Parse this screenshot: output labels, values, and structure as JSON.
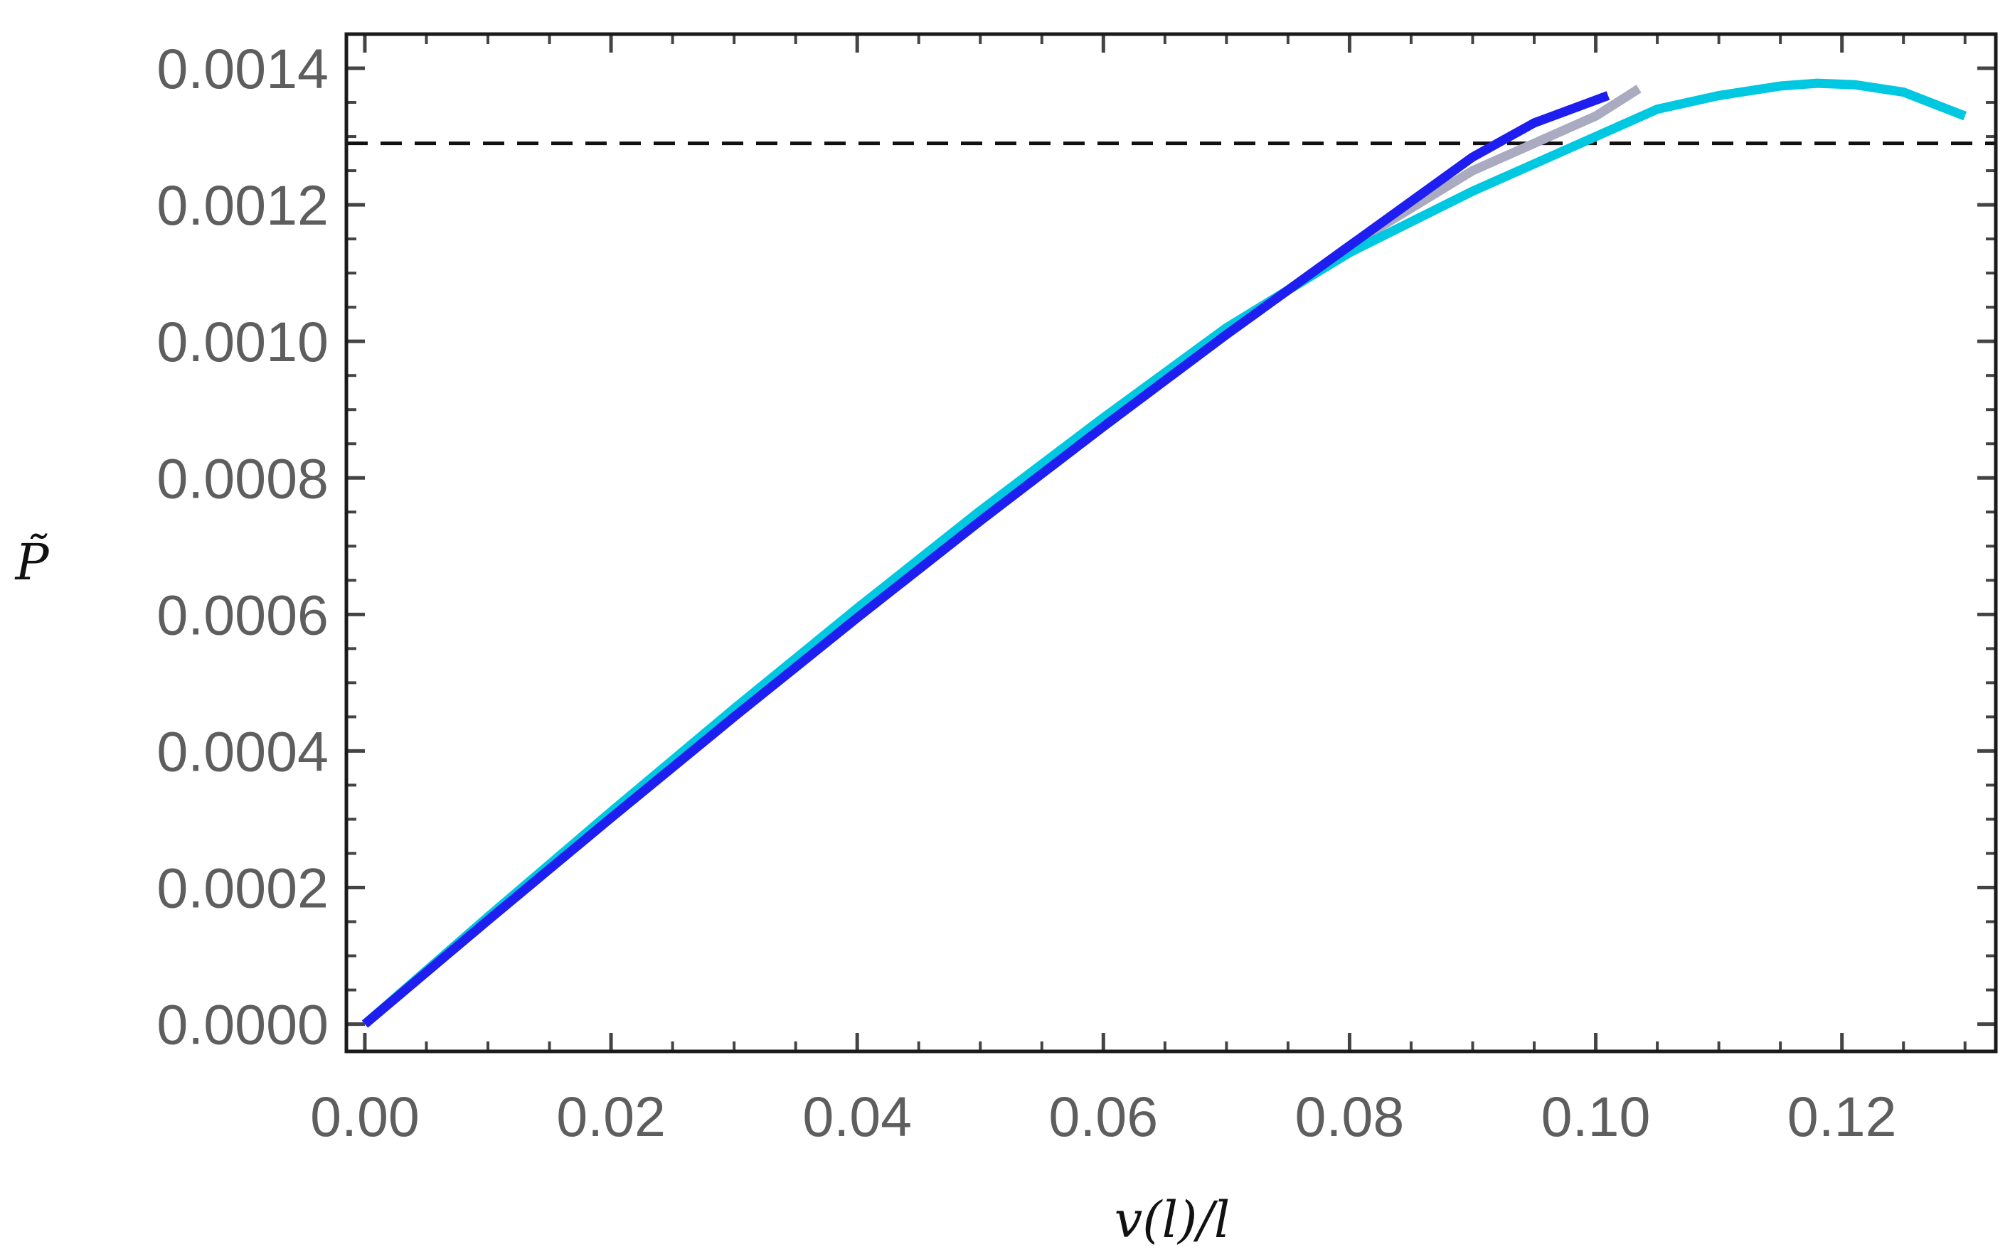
{
  "chart_data": {
    "type": "line",
    "title": "",
    "xlabel": "v(l)/l",
    "ylabel": "P̃",
    "xlim": [
      -0.0015,
      0.1325
    ],
    "ylim": [
      -4e-05,
      0.00145
    ],
    "x_ticks": [
      "0.00",
      "0.02",
      "0.04",
      "0.06",
      "0.08",
      "0.10",
      "0.12"
    ],
    "x_tick_values": [
      0,
      0.02,
      0.04,
      0.06,
      0.08,
      0.1,
      0.12
    ],
    "y_ticks": [
      "0.0000",
      "0.0002",
      "0.0004",
      "0.0006",
      "0.0008",
      "0.0010",
      "0.0012",
      "0.0014"
    ],
    "y_tick_values": [
      0,
      0.0002,
      0.0004,
      0.0006,
      0.0008,
      0.001,
      0.0012,
      0.0014
    ],
    "grid": false,
    "legend": "none",
    "frame": true,
    "series": [
      {
        "color": "#aaaac0",
        "x": [
          0,
          0.01,
          0.02,
          0.03,
          0.04,
          0.05,
          0.06,
          0.07,
          0.08,
          0.09,
          0.1,
          0.1035
        ],
        "y": [
          0,
          0.000152,
          0.000302,
          0.00045,
          0.000597,
          0.00074,
          0.000878,
          0.00101,
          0.00114,
          0.00125,
          0.00133,
          0.00137
        ]
      },
      {
        "color": "#00c8e0",
        "x": [
          0,
          0.01,
          0.02,
          0.03,
          0.04,
          0.05,
          0.06,
          0.07,
          0.08,
          0.09,
          0.1,
          0.105,
          0.11,
          0.115,
          0.118,
          0.121,
          0.125,
          0.13
        ],
        "y": [
          0,
          0.000157,
          0.000311,
          0.000462,
          0.000609,
          0.000752,
          0.000888,
          0.00102,
          0.00113,
          0.00122,
          0.0013,
          0.00134,
          0.00136,
          0.001374,
          0.001378,
          0.001376,
          0.001365,
          0.00133
        ]
      },
      {
        "color": "#1e1ef0",
        "x": [
          0,
          0.01,
          0.02,
          0.03,
          0.04,
          0.05,
          0.06,
          0.07,
          0.08,
          0.09,
          0.095,
          0.101
        ],
        "y": [
          0,
          0.000152,
          0.000302,
          0.00045,
          0.000595,
          0.000737,
          0.000875,
          0.00101,
          0.00114,
          0.00127,
          0.00132,
          0.00136
        ]
      }
    ],
    "reference_lines": [
      {
        "orientation": "horizontal",
        "y": 0.00129,
        "color": "#111111",
        "style": "dashed"
      }
    ]
  }
}
